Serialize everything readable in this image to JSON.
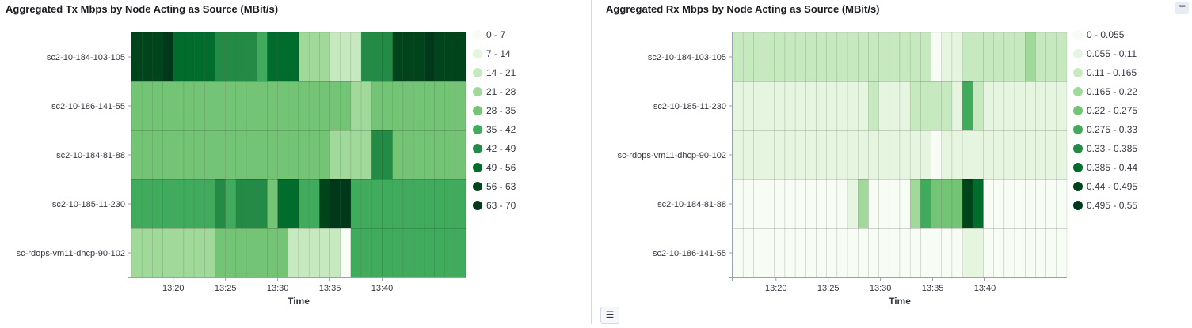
{
  "left_panel": {
    "title": "Aggregated Tx Mbps by Node Acting as Source (MBit/s)"
  },
  "right_panel": {
    "title": "Aggregated Rx Mbps by Node Acting as Source (MBit/s)"
  },
  "menu_button_icon": "more-horizontal-icon",
  "legend_toggle_icon": "list-icon",
  "chart_data": [
    {
      "type": "heatmap",
      "title": "Aggregated Tx Mbps by Node Acting as Source (MBit/s)",
      "xlabel": "Time",
      "ylabel": "",
      "x_ticks": [
        "13:20",
        "13:25",
        "13:30",
        "13:35",
        "13:40"
      ],
      "x_start": "13:16",
      "x_interval_minutes": 1,
      "rows": [
        "sc2-10-184-103-105",
        "sc2-10-186-141-55",
        "sc2-10-184-81-88",
        "sc2-10-185-11-230",
        "sc-rdops-vm11-dhcp-90-102"
      ],
      "legend": [
        "0 - 7",
        "7 - 14",
        "14 - 21",
        "21 - 28",
        "28 - 35",
        "35 - 42",
        "42 - 49",
        "49 - 56",
        "56 - 63",
        "63 - 70"
      ],
      "legend_colors": [
        "#f7fcf5",
        "#e5f5e0",
        "#c7e9c0",
        "#a1d99b",
        "#74c476",
        "#41ab5d",
        "#238b45",
        "#006d2c",
        "#00441b",
        "#00381a"
      ],
      "bins": [
        [
          8,
          8,
          8,
          9,
          7,
          7,
          7,
          7,
          6,
          6,
          6,
          6,
          5,
          7,
          7,
          7,
          3,
          3,
          3,
          2,
          2,
          2,
          6,
          6,
          6,
          8,
          8,
          8,
          9,
          8,
          8,
          8
        ],
        [
          4,
          4,
          4,
          4,
          4,
          4,
          4,
          4,
          4,
          4,
          4,
          4,
          4,
          4,
          4,
          4,
          4,
          4,
          4,
          4,
          4,
          3,
          3,
          4,
          4,
          4,
          4,
          4,
          4,
          4,
          4,
          4
        ],
        [
          4,
          4,
          4,
          4,
          4,
          4,
          4,
          4,
          4,
          4,
          4,
          4,
          4,
          4,
          4,
          4,
          4,
          4,
          4,
          3,
          3,
          3,
          3,
          6,
          6,
          4,
          4,
          4,
          4,
          4,
          4,
          4
        ],
        [
          5,
          5,
          5,
          5,
          5,
          5,
          5,
          5,
          6,
          5,
          6,
          6,
          6,
          4,
          7,
          7,
          5,
          5,
          8,
          9,
          9,
          5,
          5,
          5,
          5,
          5,
          5,
          5,
          5,
          5,
          5,
          5
        ],
        [
          3,
          3,
          3,
          3,
          3,
          3,
          3,
          3,
          4,
          4,
          4,
          4,
          4,
          4,
          4,
          2,
          2,
          2,
          2,
          2,
          0,
          5,
          5,
          5,
          5,
          5,
          5,
          5,
          5,
          5,
          5,
          5
        ]
      ]
    },
    {
      "type": "heatmap",
      "title": "Aggregated Rx Mbps by Node Acting as Source (MBit/s)",
      "xlabel": "Time",
      "ylabel": "",
      "x_ticks": [
        "13:20",
        "13:25",
        "13:30",
        "13:35",
        "13:40"
      ],
      "x_start": "13:16",
      "x_interval_minutes": 1,
      "rows": [
        "sc2-10-184-103-105",
        "sc2-10-185-11-230",
        "sc-rdops-vm11-dhcp-90-102",
        "sc2-10-184-81-88",
        "sc2-10-186-141-55"
      ],
      "legend": [
        "0 - 0.055",
        "0.055 - 0.11",
        "0.11 - 0.165",
        "0.165 - 0.22",
        "0.22 - 0.275",
        "0.275 - 0.33",
        "0.33 - 0.385",
        "0.385 - 0.44",
        "0.44 - 0.495",
        "0.495 - 0.55"
      ],
      "legend_colors": [
        "#f7fcf5",
        "#e5f5e0",
        "#c7e9c0",
        "#a1d99b",
        "#74c476",
        "#41ab5d",
        "#238b45",
        "#006d2c",
        "#00441b",
        "#00381a"
      ],
      "bins": [
        [
          2,
          2,
          2,
          2,
          2,
          2,
          2,
          2,
          2,
          2,
          2,
          2,
          2,
          2,
          2,
          2,
          2,
          2,
          2,
          0,
          1,
          1,
          2,
          2,
          2,
          2,
          2,
          2,
          3,
          2,
          2,
          2
        ],
        [
          1,
          1,
          1,
          1,
          1,
          1,
          1,
          1,
          1,
          1,
          1,
          1,
          1,
          2,
          1,
          1,
          1,
          2,
          2,
          2,
          2,
          1,
          5,
          2,
          1,
          1,
          1,
          1,
          1,
          1,
          1,
          1
        ],
        [
          1,
          1,
          1,
          1,
          1,
          1,
          1,
          1,
          1,
          1,
          1,
          1,
          1,
          1,
          1,
          1,
          1,
          1,
          1,
          0,
          1,
          1,
          1,
          1,
          1,
          1,
          1,
          1,
          1,
          1,
          1,
          1
        ],
        [
          0,
          0,
          0,
          0,
          0,
          0,
          0,
          0,
          0,
          0,
          0,
          1,
          3,
          0,
          0,
          0,
          0,
          3,
          5,
          4,
          4,
          4,
          8,
          7,
          0,
          0,
          0,
          0,
          0,
          0,
          0,
          0
        ],
        [
          0,
          0,
          0,
          0,
          0,
          0,
          0,
          0,
          0,
          0,
          0,
          0,
          0,
          0,
          0,
          0,
          0,
          0,
          0,
          0,
          0,
          0,
          1,
          1,
          0,
          0,
          0,
          0,
          0,
          0,
          0,
          0
        ]
      ]
    }
  ]
}
